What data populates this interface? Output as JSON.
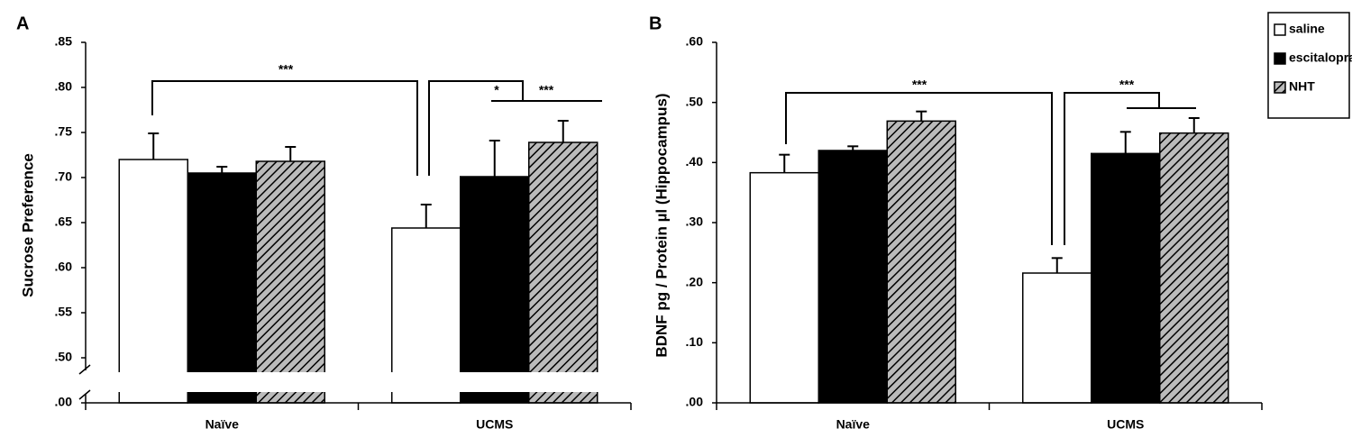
{
  "chart_data": [
    {
      "type": "bar",
      "panel": "A",
      "ylabel": "Sucrose Preference",
      "categories": [
        "Naïve",
        "UCMS"
      ],
      "broken_axis": true,
      "ylim": [
        0,
        0.85
      ],
      "yticks": [
        {
          "value": 0,
          "label": ".00"
        },
        {
          "value": 0.5,
          "label": ".50"
        },
        {
          "value": 0.55,
          "label": ".55"
        },
        {
          "value": 0.6,
          "label": ".60"
        },
        {
          "value": 0.65,
          "label": ".65"
        },
        {
          "value": 0.7,
          "label": ".70"
        },
        {
          "value": 0.75,
          "label": ".75"
        },
        {
          "value": 0.8,
          "label": ".80"
        },
        {
          "value": 0.85,
          "label": ".85"
        }
      ],
      "series": [
        {
          "color": "#ffffff",
          "values": [
            0.72,
            0.644
          ],
          "errors": [
            0.029,
            0.026
          ]
        },
        {
          "color": "#000000",
          "values": [
            0.705,
            0.701
          ],
          "errors": [
            0.007,
            0.04
          ]
        },
        {
          "color": "#bbbbbb",
          "pattern": "diagonal-hatch",
          "values": [
            0.718,
            0.739
          ],
          "errors": [
            0.016,
            0.024
          ]
        }
      ],
      "annotations": [
        {
          "text": "***"
        },
        {
          "text": "*"
        },
        {
          "text": "***"
        }
      ]
    },
    {
      "type": "bar",
      "panel": "B",
      "ylabel": "BDNF pg / Protein µl (Hippocampus)",
      "categories": [
        "Naïve",
        "UCMS"
      ],
      "broken_axis": false,
      "ylim": [
        0,
        0.6
      ],
      "yticks": [
        {
          "value": 0,
          "label": ".00"
        },
        {
          "value": 0.1,
          "label": ".10"
        },
        {
          "value": 0.2,
          "label": ".20"
        },
        {
          "value": 0.3,
          "label": ".30"
        },
        {
          "value": 0.4,
          "label": ".40"
        },
        {
          "value": 0.5,
          "label": ".50"
        },
        {
          "value": 0.6,
          "label": ".60"
        }
      ],
      "legend": "top-right",
      "series": [
        {
          "name": "saline",
          "color": "#ffffff",
          "values": [
            0.383,
            0.216
          ],
          "errors": [
            0.03,
            0.025
          ]
        },
        {
          "name": "escitalopram",
          "color": "#000000",
          "values": [
            0.42,
            0.415
          ],
          "errors": [
            0.007,
            0.036
          ]
        },
        {
          "name": "NHT",
          "color": "#bbbbbb",
          "pattern": "diagonal-hatch",
          "values": [
            0.469,
            0.449
          ],
          "errors": [
            0.016,
            0.025
          ]
        }
      ],
      "annotations": [
        {
          "text": "***"
        },
        {
          "text": "***"
        }
      ]
    }
  ]
}
